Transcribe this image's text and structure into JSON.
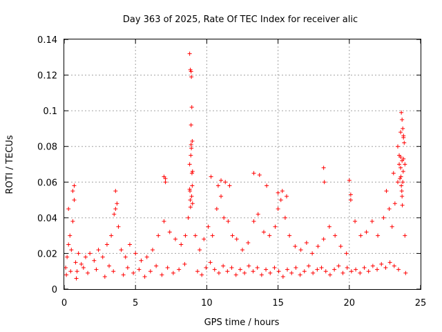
{
  "chart_data": {
    "type": "scatter",
    "title": "Day 363 of 2025, Rate Of TEC Index for receiver alic",
    "xlabel": "GPS time / hours",
    "ylabel": "ROTI / TECUs",
    "xlim": [
      0,
      25
    ],
    "ylim": [
      0,
      0.14
    ],
    "x_ticks": [
      0,
      5,
      10,
      15,
      20,
      25
    ],
    "x_tick_labels": [
      "0",
      "5",
      "10",
      "15",
      "20",
      "25"
    ],
    "y_ticks": [
      0,
      0.02,
      0.04,
      0.06,
      0.08,
      0.1,
      0.12,
      0.14
    ],
    "y_tick_labels": [
      "0",
      "0.02",
      "0.04",
      "0.06",
      "0.08",
      "0.1",
      "0.12",
      "0.14"
    ],
    "grid": true,
    "marker": "+",
    "series": [
      {
        "name": "ROTI",
        "color": "#ff0000",
        "x": [
          0.1,
          0.2,
          0.3,
          0.4,
          0.5,
          0.6,
          0.7,
          0.8,
          0.9,
          1.0,
          1.2,
          1.5,
          1.8,
          2.1,
          2.4,
          2.7,
          3.0,
          3.3,
          3.5,
          3.6,
          3.8,
          4.0,
          4.3,
          4.6,
          5.0,
          5.4,
          5.8,
          6.2,
          6.6,
          7.0,
          7.1,
          7.4,
          7.8,
          8.2,
          8.5,
          8.7,
          8.8,
          8.9,
          9.0,
          9.2,
          9.5,
          9.8,
          10.1,
          10.4,
          10.7,
          11.0,
          11.2,
          11.5,
          11.8,
          12.1,
          12.5,
          12.9,
          13.3,
          13.6,
          14.0,
          14.4,
          14.8,
          15.0,
          15.2,
          15.5,
          15.8,
          16.2,
          16.6,
          17.0,
          17.4,
          17.8,
          18.2,
          18.6,
          19.0,
          19.4,
          19.8,
          20.1,
          20.4,
          20.8,
          21.2,
          21.6,
          22.0,
          22.4,
          22.8,
          23.0,
          23.2,
          23.4,
          23.5,
          23.6,
          23.7,
          23.8,
          23.9,
          0.3,
          0.6,
          0.7,
          3.6,
          3.7,
          7.0,
          7.1,
          8.8,
          8.85,
          8.9,
          8.92,
          8.95,
          8.98,
          9.0,
          10.3,
          10.8,
          11.0,
          11.3,
          11.6,
          13.3,
          13.7,
          14.2,
          15.0,
          15.3,
          15.6,
          18.2,
          18.25,
          20.0,
          20.1,
          22.6,
          23.1,
          23.4,
          23.5,
          23.6,
          23.65,
          23.7,
          23.75,
          23.8,
          23.85,
          23.9,
          8.8,
          8.82,
          8.84,
          8.86,
          8.88,
          8.9,
          8.92,
          8.94,
          8.96,
          8.98,
          23.55,
          23.6,
          23.62,
          23.65,
          23.68,
          23.7,
          23.72,
          23.75,
          23.78,
          23.8,
          0.15,
          0.45,
          0.85,
          1.35,
          1.65,
          2.25,
          2.85,
          3.15,
          3.45,
          4.15,
          4.45,
          4.85,
          5.25,
          5.65,
          6.05,
          6.45,
          6.85,
          7.25,
          7.65,
          8.05,
          8.45,
          9.35,
          9.65,
          9.95,
          10.25,
          10.55,
          10.85,
          11.15,
          11.45,
          11.75,
          12.05,
          12.35,
          12.65,
          12.95,
          13.25,
          13.55,
          13.85,
          14.15,
          14.45,
          14.75,
          15.05,
          15.35,
          15.65,
          15.95,
          16.25,
          16.55,
          16.85,
          17.15,
          17.45,
          17.75,
          18.05,
          18.35,
          18.65,
          18.95,
          19.25,
          19.55,
          19.85,
          20.15,
          20.45,
          20.75,
          21.05,
          21.35,
          21.65,
          21.95,
          22.25,
          22.55,
          22.85,
          23.15,
          23.45,
          23.95
        ],
        "y": [
          0.012,
          0.018,
          0.025,
          0.03,
          0.022,
          0.038,
          0.05,
          0.015,
          0.01,
          0.02,
          0.014,
          0.018,
          0.02,
          0.016,
          0.022,
          0.018,
          0.025,
          0.03,
          0.042,
          0.045,
          0.035,
          0.022,
          0.018,
          0.025,
          0.02,
          0.016,
          0.018,
          0.022,
          0.03,
          0.038,
          0.06,
          0.032,
          0.028,
          0.025,
          0.03,
          0.04,
          0.07,
          0.092,
          0.048,
          0.03,
          0.022,
          0.028,
          0.035,
          0.03,
          0.045,
          0.052,
          0.04,
          0.038,
          0.03,
          0.028,
          0.022,
          0.026,
          0.038,
          0.042,
          0.032,
          0.03,
          0.035,
          0.045,
          0.05,
          0.04,
          0.03,
          0.024,
          0.022,
          0.026,
          0.02,
          0.024,
          0.028,
          0.035,
          0.03,
          0.024,
          0.02,
          0.05,
          0.038,
          0.03,
          0.032,
          0.038,
          0.03,
          0.04,
          0.045,
          0.035,
          0.048,
          0.06,
          0.07,
          0.088,
          0.072,
          0.085,
          0.03,
          0.045,
          0.055,
          0.058,
          0.055,
          0.048,
          0.063,
          0.062,
          0.132,
          0.123,
          0.122,
          0.119,
          0.102,
          0.083,
          0.066,
          0.063,
          0.058,
          0.061,
          0.06,
          0.058,
          0.065,
          0.064,
          0.058,
          0.054,
          0.055,
          0.052,
          0.068,
          0.06,
          0.061,
          0.053,
          0.055,
          0.065,
          0.08,
          0.075,
          0.068,
          0.099,
          0.095,
          0.09,
          0.086,
          0.082,
          0.07,
          0.056,
          0.055,
          0.05,
          0.046,
          0.075,
          0.081,
          0.079,
          0.052,
          0.065,
          0.058,
          0.062,
          0.074,
          0.063,
          0.058,
          0.055,
          0.052,
          0.047,
          0.06,
          0.066,
          0.073,
          0.008,
          0.01,
          0.006,
          0.012,
          0.009,
          0.011,
          0.007,
          0.013,
          0.01,
          0.008,
          0.012,
          0.009,
          0.011,
          0.007,
          0.01,
          0.013,
          0.008,
          0.012,
          0.009,
          0.011,
          0.014,
          0.01,
          0.008,
          0.012,
          0.015,
          0.011,
          0.009,
          0.013,
          0.01,
          0.012,
          0.008,
          0.011,
          0.009,
          0.013,
          0.01,
          0.012,
          0.008,
          0.011,
          0.009,
          0.012,
          0.01,
          0.007,
          0.011,
          0.009,
          0.012,
          0.008,
          0.01,
          0.013,
          0.009,
          0.011,
          0.012,
          0.01,
          0.008,
          0.011,
          0.013,
          0.009,
          0.012,
          0.01,
          0.011,
          0.009,
          0.012,
          0.01,
          0.013,
          0.011,
          0.014,
          0.012,
          0.015,
          0.013,
          0.011,
          0.009
        ]
      }
    ]
  },
  "colors": {
    "marker": "#ff0000",
    "grid": "#a0a0a0",
    "axis": "#000000",
    "background": "#ffffff"
  }
}
